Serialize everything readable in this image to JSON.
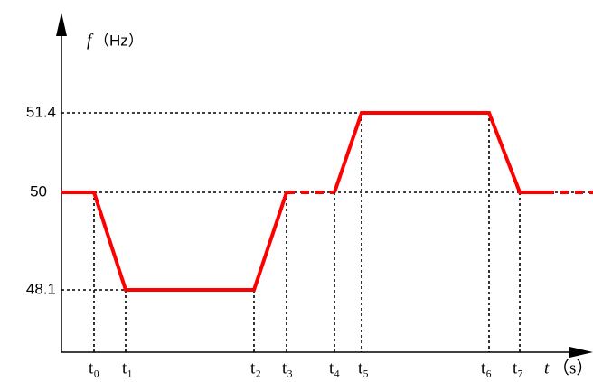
{
  "y_axis": {
    "symbol": "f",
    "unit": "（Hz）",
    "levels": [
      "51.4",
      "50",
      "48.1"
    ]
  },
  "x_axis": {
    "symbol": "t",
    "unit": "（s）",
    "times": [
      "t₀",
      "t₁",
      "t₂",
      "t₃",
      "t₄",
      "t₅",
      "t₆",
      "t₇"
    ]
  }
}
